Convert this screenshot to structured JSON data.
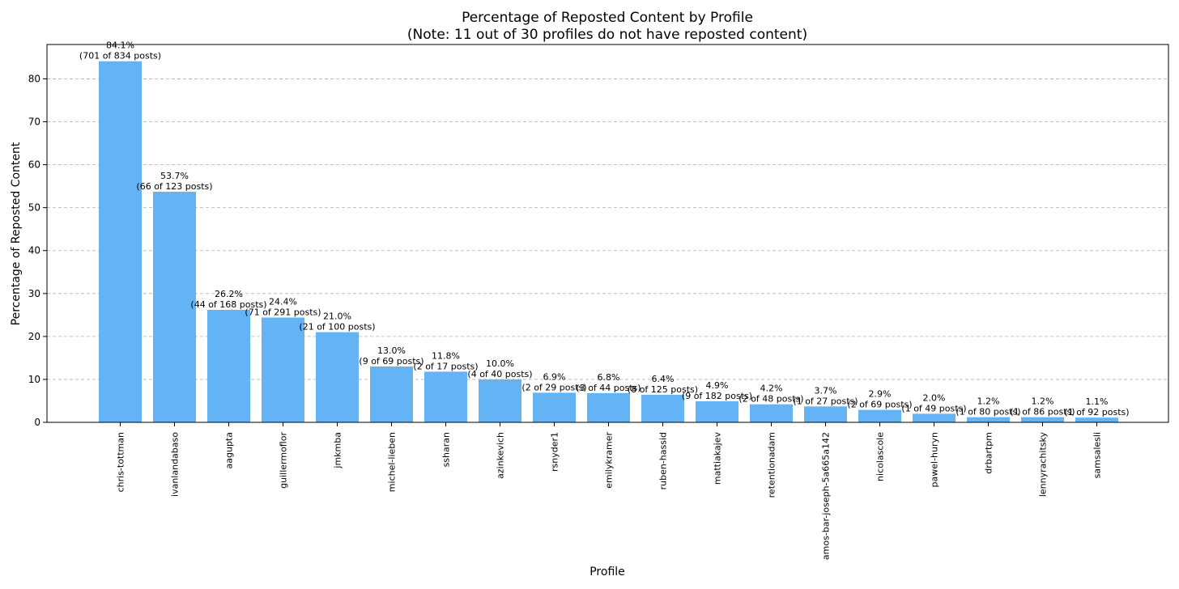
{
  "chart_data": {
    "type": "bar",
    "title": "Percentage of Reposted Content by Profile",
    "subtitle": "(Note: 11 out of 30 profiles do not have reposted content)",
    "xlabel": "Profile",
    "ylabel": "Percentage of Reposted Content",
    "ylim": [
      0,
      88
    ],
    "yticks": [
      0,
      10,
      20,
      30,
      40,
      50,
      60,
      70,
      80
    ],
    "grid": "horizontal dashed",
    "bar_color": "#63b3f5",
    "categories": [
      "chris-tottman",
      "ivanlandabaso",
      "aagupta",
      "guillermoflor",
      "jmkmba",
      "michel-lieben",
      "ssharan",
      "azinkevich",
      "rsnyder1",
      "emilykramer",
      "ruben-hassid",
      "mattiakajev",
      "retentionadam",
      "amos-bar-joseph-5a665a142",
      "nicolascole",
      "pawel-huryn",
      "drbartpm",
      "lennyrachitsky",
      "samsalesli"
    ],
    "values": [
      84.1,
      53.7,
      26.2,
      24.4,
      21.0,
      13.0,
      11.8,
      10.0,
      6.9,
      6.8,
      6.4,
      4.9,
      4.2,
      3.7,
      2.9,
      2.0,
      1.2,
      1.2,
      1.1
    ],
    "labels": [
      "84.1%",
      "53.7%",
      "26.2%",
      "24.4%",
      "21.0%",
      "13.0%",
      "11.8%",
      "10.0%",
      "6.9%",
      "6.8%",
      "6.4%",
      "4.9%",
      "4.2%",
      "3.7%",
      "2.9%",
      "2.0%",
      "1.2%",
      "1.2%",
      "1.1%"
    ],
    "sublabels": [
      "(701 of 834 posts)",
      "(66 of 123 posts)",
      "(44 of 168 posts)",
      "(71 of 291 posts)",
      "(21 of 100 posts)",
      "(9 of 69 posts)",
      "(2 of 17 posts)",
      "(4 of 40 posts)",
      "(2 of 29 posts)",
      "(3 of 44 posts)",
      "(8 of 125 posts)",
      "(9 of 182 posts)",
      "(2 of 48 posts)",
      "(1 of 27 posts)",
      "(2 of 69 posts)",
      "(1 of 49 posts)",
      "(1 of 80 posts)",
      "(1 of 86 posts)",
      "(1 of 92 posts)"
    ]
  }
}
